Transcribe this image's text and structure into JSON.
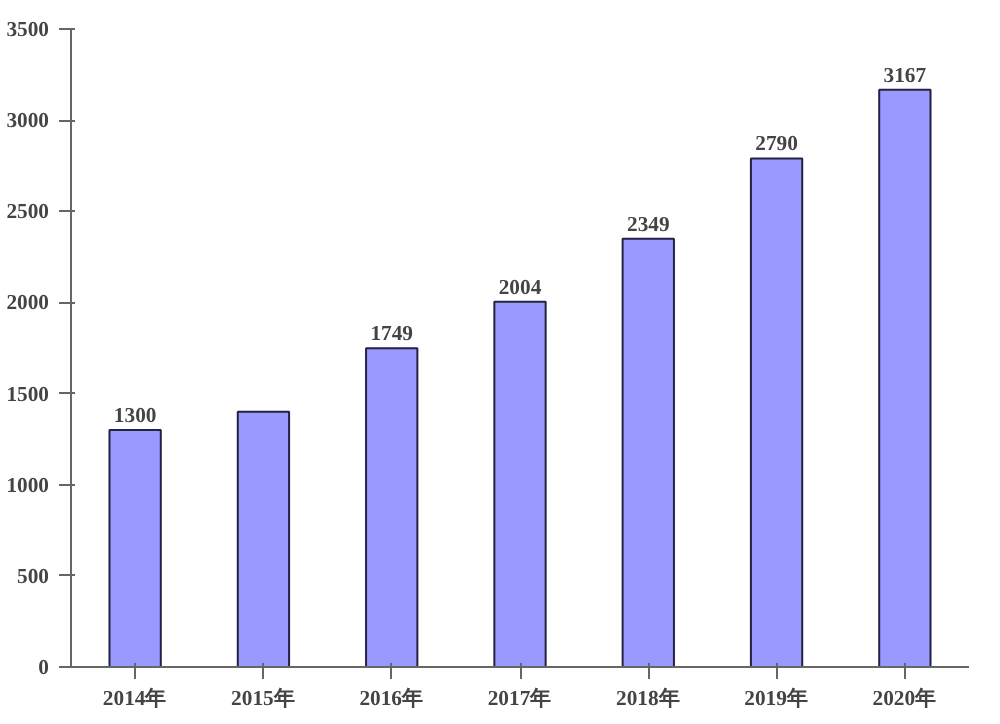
{
  "chart_data": {
    "type": "bar",
    "categories": [
      "2014年",
      "2015年",
      "2016年",
      "2017年",
      "2018年",
      "2019年",
      "2020年"
    ],
    "values": [
      1300,
      1400,
      1749,
      2004,
      2349,
      2790,
      3167
    ],
    "value_labels": [
      "1300",
      null,
      "1749",
      "2004",
      "2349",
      "2790",
      "3167"
    ],
    "color": "#9999ff",
    "ylim": [
      0,
      3500
    ],
    "yticks": [
      0,
      500,
      1000,
      1500,
      2000,
      2500,
      3000,
      3500
    ],
    "grid": false
  }
}
